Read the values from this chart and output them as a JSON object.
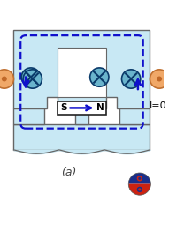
{
  "light_blue": "#c5e8f0",
  "outline_color": "#666666",
  "dashed_blue": "#1010cc",
  "arrow_blue": "#1010cc",
  "coil_bg": "#6ab4cc",
  "coil_x_color": "#0a3a6a",
  "orange_coil_fill": "#f0a868",
  "orange_coil_edge": "#c07030",
  "dot_color": "#c06828",
  "white": "#ffffff",
  "label_a": "(a)",
  "label_I": "I=0",
  "fig_width": 1.91,
  "fig_height": 2.71,
  "dpi": 100,
  "core_color": "#c8e8f4",
  "magnet_border": "#222222"
}
